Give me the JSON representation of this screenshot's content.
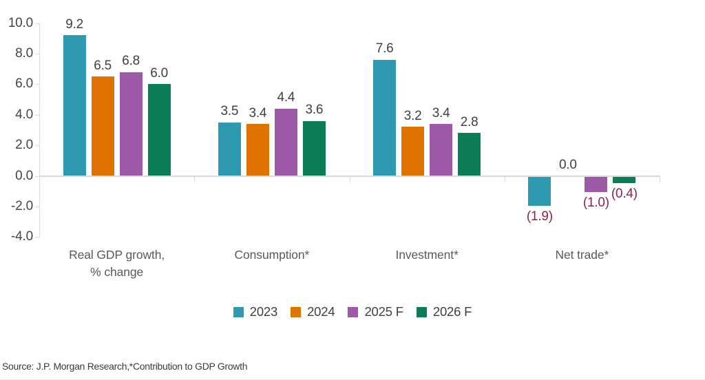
{
  "chart_data": {
    "type": "bar",
    "title": "",
    "categories": [
      "Real GDP growth,\n% change",
      "Consumption*",
      "Investment*",
      "Net trade*"
    ],
    "series": [
      {
        "name": "2023",
        "color": "#2d9aaf",
        "values": [
          9.2,
          3.5,
          7.6,
          -1.9
        ]
      },
      {
        "name": "2024",
        "color": "#de7300",
        "values": [
          6.5,
          3.4,
          3.2,
          0.0
        ]
      },
      {
        "name": "2025 F",
        "color": "#9c59a6",
        "values": [
          6.8,
          4.4,
          3.4,
          -1.0
        ]
      },
      {
        "name": "2026 F",
        "color": "#0a7d56",
        "values": [
          6.0,
          3.6,
          2.8,
          -0.4
        ]
      }
    ],
    "ylim": [
      -4.0,
      10.0
    ],
    "yticks": [
      10.0,
      8.0,
      6.0,
      4.0,
      2.0,
      0.0,
      -2.0,
      -4.0
    ],
    "xlabel": "",
    "ylabel": "",
    "grid": false,
    "legend_position": "bottom",
    "value_label_format": "one_decimal",
    "negative_value_format": "parentheses",
    "colors": {
      "axis": "#d9d9d9",
      "value_label": "#404040",
      "negative_value_label": "#8e2443",
      "tick_label": "#454545",
      "category_label": "#595959"
    }
  },
  "source_note": "Source: J.P. Morgan Research,*Contribution to GDP Growth"
}
